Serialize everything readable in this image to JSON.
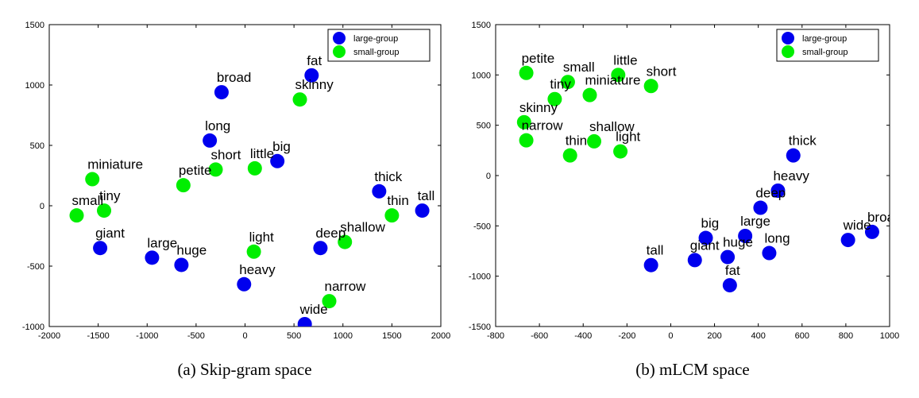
{
  "colors": {
    "large": "#0000ee",
    "small": "#00ee00"
  },
  "chart_data": [
    {
      "type": "scatter",
      "caption": "(a) Skip-gram space",
      "xlim": [
        -2000,
        2000
      ],
      "ylim": [
        -1000,
        1500
      ],
      "xticks": [
        -2000,
        -1500,
        -1000,
        -500,
        0,
        500,
        1000,
        1500,
        2000
      ],
      "yticks": [
        -1000,
        -500,
        0,
        500,
        1000,
        1500
      ],
      "xtick_labels": [
        "-2000",
        "-1500",
        "-1000",
        "-500",
        "0",
        "500",
        "1000",
        "1500",
        "2000"
      ],
      "ytick_labels": [
        "-1000",
        "-500",
        "0",
        "500",
        "1000",
        "1500"
      ],
      "legend_position": "top-right",
      "series": [
        {
          "name": "large-group",
          "points": [
            {
              "label": "fat",
              "x": 680,
              "y": 1080
            },
            {
              "label": "broad",
              "x": -240,
              "y": 940
            },
            {
              "label": "long",
              "x": -360,
              "y": 540
            },
            {
              "label": "big",
              "x": 330,
              "y": 370
            },
            {
              "label": "thick",
              "x": 1370,
              "y": 120
            },
            {
              "label": "tall",
              "x": 1810,
              "y": -40
            },
            {
              "label": "giant",
              "x": -1480,
              "y": -350
            },
            {
              "label": "large",
              "x": -950,
              "y": -430
            },
            {
              "label": "huge",
              "x": -650,
              "y": -490
            },
            {
              "label": "deep",
              "x": 770,
              "y": -350
            },
            {
              "label": "heavy",
              "x": -10,
              "y": -650
            },
            {
              "label": "wide",
              "x": 610,
              "y": -980
            }
          ]
        },
        {
          "name": "small-group",
          "points": [
            {
              "label": "skinny",
              "x": 560,
              "y": 880
            },
            {
              "label": "short",
              "x": -300,
              "y": 300
            },
            {
              "label": "little",
              "x": 100,
              "y": 310
            },
            {
              "label": "petite",
              "x": -630,
              "y": 170
            },
            {
              "label": "miniature",
              "x": -1560,
              "y": 220
            },
            {
              "label": "tiny",
              "x": -1440,
              "y": -40
            },
            {
              "label": "small",
              "x": -1720,
              "y": -80
            },
            {
              "label": "thin",
              "x": 1500,
              "y": -80
            },
            {
              "label": "shallow",
              "x": 1020,
              "y": -300
            },
            {
              "label": "light",
              "x": 90,
              "y": -380
            },
            {
              "label": "narrow",
              "x": 860,
              "y": -790
            }
          ]
        }
      ]
    },
    {
      "type": "scatter",
      "caption": "(b) mLCM space",
      "xlim": [
        -800,
        1000
      ],
      "ylim": [
        -1500,
        1500
      ],
      "xticks": [
        -800,
        -600,
        -400,
        -200,
        0,
        200,
        400,
        600,
        800,
        1000
      ],
      "yticks": [
        -1500,
        -1000,
        -500,
        0,
        500,
        1000,
        1500
      ],
      "xtick_labels": [
        "-800",
        "-600",
        "-400",
        "-200",
        "0",
        "200",
        "400",
        "600",
        "800",
        "1000"
      ],
      "ytick_labels": [
        "-1500",
        "-1000",
        "-500",
        "0",
        "500",
        "1000",
        "1500"
      ],
      "legend_position": "top-right",
      "series": [
        {
          "name": "large-group",
          "points": [
            {
              "label": "thick",
              "x": 560,
              "y": 200
            },
            {
              "label": "heavy",
              "x": 490,
              "y": -150
            },
            {
              "label": "deep",
              "x": 410,
              "y": -320
            },
            {
              "label": "large",
              "x": 340,
              "y": -600
            },
            {
              "label": "big",
              "x": 160,
              "y": -620
            },
            {
              "label": "long",
              "x": 450,
              "y": -770
            },
            {
              "label": "huge",
              "x": 260,
              "y": -810
            },
            {
              "label": "giant",
              "x": 110,
              "y": -840
            },
            {
              "label": "tall",
              "x": -90,
              "y": -890
            },
            {
              "label": "fat",
              "x": 270,
              "y": -1090
            },
            {
              "label": "wide",
              "x": 810,
              "y": -640
            },
            {
              "label": "broad",
              "x": 920,
              "y": -560
            }
          ]
        },
        {
          "name": "small-group",
          "points": [
            {
              "label": "petite",
              "x": -660,
              "y": 1020
            },
            {
              "label": "small",
              "x": -470,
              "y": 930
            },
            {
              "label": "little",
              "x": -240,
              "y": 1000
            },
            {
              "label": "short",
              "x": -90,
              "y": 890
            },
            {
              "label": "tiny",
              "x": -530,
              "y": 760
            },
            {
              "label": "miniature",
              "x": -370,
              "y": 800
            },
            {
              "label": "skinny",
              "x": -670,
              "y": 530
            },
            {
              "label": "narrow",
              "x": -660,
              "y": 350
            },
            {
              "label": "shallow",
              "x": -350,
              "y": 340
            },
            {
              "label": "thin",
              "x": -460,
              "y": 200
            },
            {
              "label": "light",
              "x": -230,
              "y": 240
            }
          ]
        }
      ]
    }
  ]
}
